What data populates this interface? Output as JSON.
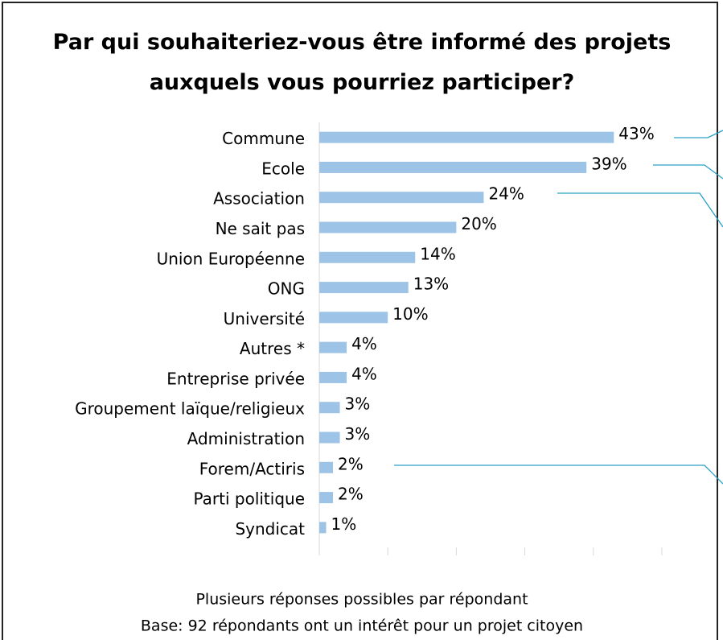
{
  "chart_data": {
    "type": "hbar",
    "title": "Par qui souhaiteriez-vous être informé des projets auxquels vous pourriez participer?",
    "categories": [
      "Commune",
      "Ecole",
      "Association",
      "Ne sait pas",
      "Union Européenne",
      "ONG",
      "Université",
      "Autres *",
      "Entreprise privée",
      "Groupement laïque/religieux",
      "Administration",
      "Forem/Actiris",
      "Parti politique",
      "Syndicat"
    ],
    "values": [
      43,
      39,
      24,
      20,
      14,
      13,
      10,
      4,
      4,
      3,
      3,
      2,
      2,
      1
    ],
    "value_labels": [
      "43%",
      "39%",
      "24%",
      "20%",
      "14%",
      "13%",
      "10%",
      "4%",
      "4%",
      "3%",
      "3%",
      "2%",
      "2%",
      "1%"
    ],
    "color": "#9dc3e6",
    "xlim": [
      0,
      54
    ],
    "xticks": [
      0,
      10,
      20,
      30,
      40,
      50
    ],
    "notes": [
      "Plusieurs réponses possibles par répondant",
      "Base: 92 répondants ont un intérêt pour un projet citoyen"
    ]
  }
}
